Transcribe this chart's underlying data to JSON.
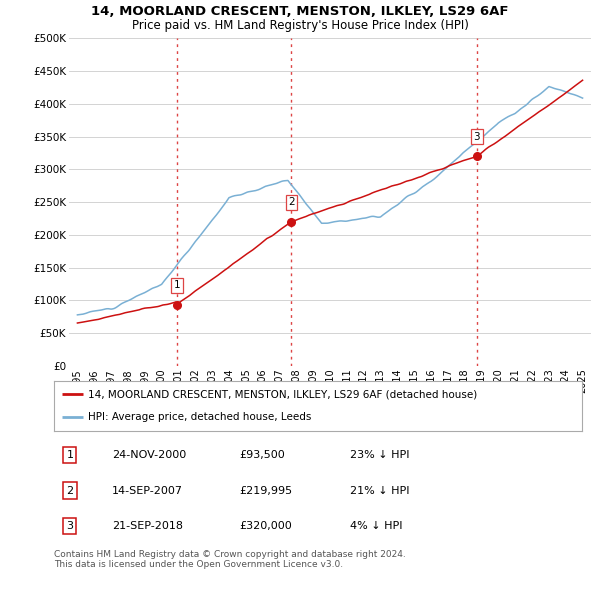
{
  "title": "14, MOORLAND CRESCENT, MENSTON, ILKLEY, LS29 6AF",
  "subtitle": "Price paid vs. HM Land Registry's House Price Index (HPI)",
  "ylabel_ticks": [
    "£0",
    "£50K",
    "£100K",
    "£150K",
    "£200K",
    "£250K",
    "£300K",
    "£350K",
    "£400K",
    "£450K",
    "£500K"
  ],
  "ytick_values": [
    0,
    50000,
    100000,
    150000,
    200000,
    250000,
    300000,
    350000,
    400000,
    450000,
    500000
  ],
  "xlim_start": 1994.5,
  "xlim_end": 2025.5,
  "ylim": [
    0,
    500000
  ],
  "sale_dates": [
    2000.9,
    2007.71,
    2018.72
  ],
  "sale_prices": [
    93500,
    219995,
    320000
  ],
  "sale_labels": [
    "1",
    "2",
    "3"
  ],
  "vline_color": "#dd4444",
  "vline_style": ":",
  "red_line_color": "#cc1111",
  "blue_line_color": "#7ab0d4",
  "legend_label_red": "14, MOORLAND CRESCENT, MENSTON, ILKLEY, LS29 6AF (detached house)",
  "legend_label_blue": "HPI: Average price, detached house, Leeds",
  "table_entries": [
    {
      "num": "1",
      "date": "24-NOV-2000",
      "price": "£93,500",
      "hpi": "23% ↓ HPI"
    },
    {
      "num": "2",
      "date": "14-SEP-2007",
      "price": "£219,995",
      "hpi": "21% ↓ HPI"
    },
    {
      "num": "3",
      "date": "21-SEP-2018",
      "price": "£320,000",
      "hpi": "4% ↓ HPI"
    }
  ],
  "footnote": "Contains HM Land Registry data © Crown copyright and database right 2024.\nThis data is licensed under the Open Government Licence v3.0.",
  "background_color": "#ffffff",
  "grid_color": "#cccccc",
  "xtick_labels": [
    "1995",
    "1996",
    "1997",
    "1998",
    "1999",
    "2000",
    "2001",
    "2002",
    "2003",
    "2004",
    "2005",
    "2006",
    "2007",
    "2008",
    "2009",
    "2010",
    "2011",
    "2012",
    "2013",
    "2014",
    "2015",
    "2016",
    "2017",
    "2018",
    "2019",
    "2020",
    "2021",
    "2022",
    "2023",
    "2024",
    "2025"
  ],
  "xtick_positions": [
    1995,
    1996,
    1997,
    1998,
    1999,
    2000,
    2001,
    2002,
    2003,
    2004,
    2005,
    2006,
    2007,
    2008,
    2009,
    2010,
    2011,
    2012,
    2013,
    2014,
    2015,
    2016,
    2017,
    2018,
    2019,
    2020,
    2021,
    2022,
    2023,
    2024,
    2025
  ]
}
